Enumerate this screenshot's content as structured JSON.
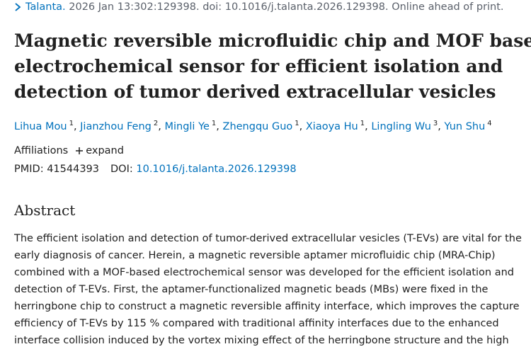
{
  "citation": {
    "journal": "Talanta.",
    "details": "2026 Jan 13:302:129398. doi: 10.1016/j.talanta.2026.129398. Online ahead of print."
  },
  "title": [
    "Magnetic reversible microfluidic chip and MOF based",
    "electrochemical sensor for efficient isolation and",
    "detection of tumor derived extracellular vesicles"
  ],
  "authors": [
    {
      "name": "Lihua Mou",
      "affiliation": "1"
    },
    {
      "name": "Jianzhou Feng",
      "affiliation": "2"
    },
    {
      "name": "Mingli Ye",
      "affiliation": "1"
    },
    {
      "name": "Zhengqu Guo",
      "affiliation": "1"
    },
    {
      "name": "Xiaoya Hu",
      "affiliation": "1"
    },
    {
      "name": "Lingling Wu",
      "affiliation": "3"
    },
    {
      "name": "Yun Shu",
      "affiliation": "4"
    }
  ],
  "affiliations": {
    "label": "Affiliations",
    "toggle": "expand"
  },
  "ids": {
    "pmid_label": "PMID:",
    "pmid": "41544393",
    "doi_label": "DOI:",
    "doi": "10.1016/j.talanta.2026.129398"
  },
  "abstract": {
    "heading": "Abstract",
    "lines": [
      "The efficient isolation and detection of tumor-derived extracellular vesicles (T-EVs) are vital for the",
      "early diagnosis of cancer. Herein, a magnetic reversible aptamer microfluidic chip (MRA-Chip)",
      "combined with a MOF-based electrochemical sensor was developed for the efficient isolation and",
      "detection of T-EVs. First, the aptamer-functionalized magnetic beads (MBs) were fixed in the",
      "herringbone chip to construct a magnetic reversible affinity interface, which improves the capture",
      "efficiency of T-EVs by 115 % compared with traditional affinity interfaces due to the enhanced",
      "interface collision induced by the vortex mixing effect of the herringbone structure and the high"
    ]
  }
}
